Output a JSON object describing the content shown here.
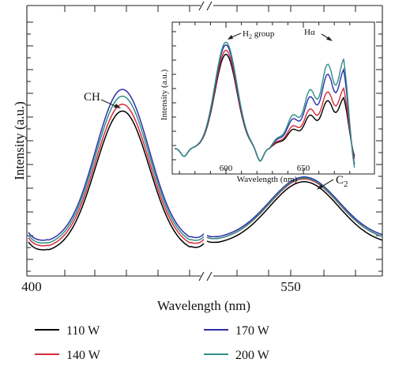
{
  "chart_data": [
    {
      "type": "line",
      "panel": "main",
      "xlabel": "Wavelength (nm)",
      "ylabel": "Intensity (a.u.)",
      "x_ticks": [
        "400",
        "550"
      ],
      "axis_break": true,
      "annotations": [
        "CH",
        "C",
        "2"
      ],
      "legend": {
        "position": "bottom",
        "entries": [
          "110 W",
          "140 W",
          "170 W",
          "200 W"
        ]
      },
      "series": [
        {
          "name": "110 W",
          "color": "#000000",
          "ch": {
            "peak": 0.61,
            "min": 0.085
          },
          "c2": {
            "peak": 0.455,
            "min": 0.12
          }
        },
        {
          "name": "140 W",
          "color": "#d62b3a",
          "ch": {
            "peak": 0.635,
            "min": 0.1
          },
          "c2": {
            "peak": 0.47,
            "min": 0.14
          }
        },
        {
          "name": "170 W",
          "color": "#2b2fa8",
          "ch": {
            "peak": 0.69,
            "min": 0.12
          },
          "c2": {
            "peak": 0.48,
            "min": 0.15
          }
        },
        {
          "name": "200 W",
          "color": "#2f8f88",
          "ch": {
            "peak": 0.665,
            "min": 0.11
          },
          "c2": {
            "peak": 0.475,
            "min": 0.14
          }
        }
      ]
    },
    {
      "type": "line",
      "panel": "inset",
      "xlabel": "Wavelength (nm)",
      "ylabel": "Intensity (a.u.)",
      "x_ticks": [
        600,
        650
      ],
      "xlim": [
        565,
        685
      ],
      "annotations": [
        "H",
        "2",
        " group",
        "Hα"
      ],
      "series": [
        {
          "name": "110 W",
          "peak600": 0.82,
          "h_alpha": 0.58
        },
        {
          "name": "140 W",
          "peak600": 0.85,
          "h_alpha": 0.65
        },
        {
          "name": "170 W",
          "peak600": 0.89,
          "h_alpha": 0.79
        },
        {
          "name": "200 W",
          "peak600": 0.91,
          "h_alpha": 0.87
        }
      ]
    }
  ]
}
